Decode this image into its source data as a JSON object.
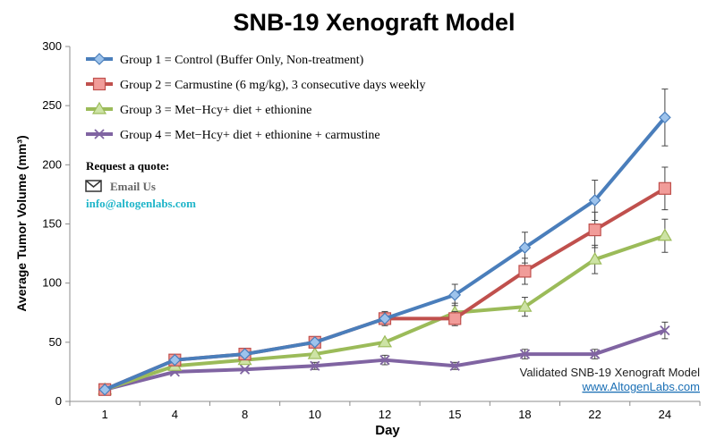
{
  "chart_data": {
    "type": "line",
    "title": "SNB-19 Xenograft Model",
    "xlabel": "Day",
    "ylabel": "Average Tumor Volume (mm³)",
    "categories": [
      "1",
      "4",
      "8",
      "10",
      "12",
      "15",
      "18",
      "22",
      "24"
    ],
    "ylim": [
      0,
      300
    ],
    "yticks": [
      0,
      50,
      100,
      150,
      200,
      250,
      300
    ],
    "grid": false,
    "legend_position": "top-left",
    "series": [
      {
        "name": "Group 1 = Control (Buffer Only, Non-treatment)",
        "color": "#4a7ebb",
        "marker": "diamond",
        "values": [
          10,
          35,
          40,
          50,
          70,
          90,
          130,
          170,
          240
        ],
        "errors": [
          0,
          0,
          0,
          0,
          6,
          9,
          13,
          17,
          24
        ]
      },
      {
        "name": "Group 2 = Carmustine (6 mg/kg), 3 consecutive days weekly",
        "color": "#c0504d",
        "marker": "square",
        "values": [
          10,
          35,
          40,
          50,
          70,
          70,
          110,
          145,
          180
        ],
        "errors": [
          0,
          0,
          0,
          3,
          5,
          6,
          11,
          15,
          18
        ]
      },
      {
        "name": "Group 3 = Met−Hcy+ diet + ethionine",
        "color": "#9bbb59",
        "marker": "triangle",
        "values": [
          10,
          30,
          35,
          40,
          50,
          75,
          80,
          120,
          140
        ],
        "errors": [
          0,
          0,
          0,
          0,
          0,
          8,
          8,
          12,
          14
        ]
      },
      {
        "name": "Group 4 = Met−Hcy+ diet + ethionine + carmustine",
        "color": "#8064a2",
        "marker": "x",
        "values": [
          10,
          25,
          27,
          30,
          35,
          30,
          40,
          40,
          60
        ],
        "errors": [
          0,
          0,
          0,
          3,
          4,
          3,
          4,
          4,
          7
        ]
      }
    ]
  },
  "contact": {
    "heading": "Request a quote:",
    "email_label": "Email Us",
    "email_address": "info@altogenlabs.com",
    "email_color": "#1fb5c9"
  },
  "watermark": {
    "line1": "Validated SNB-19 Xenograft Model",
    "line2": "www.AltogenLabs.com",
    "link_color": "#1a6fb5"
  }
}
